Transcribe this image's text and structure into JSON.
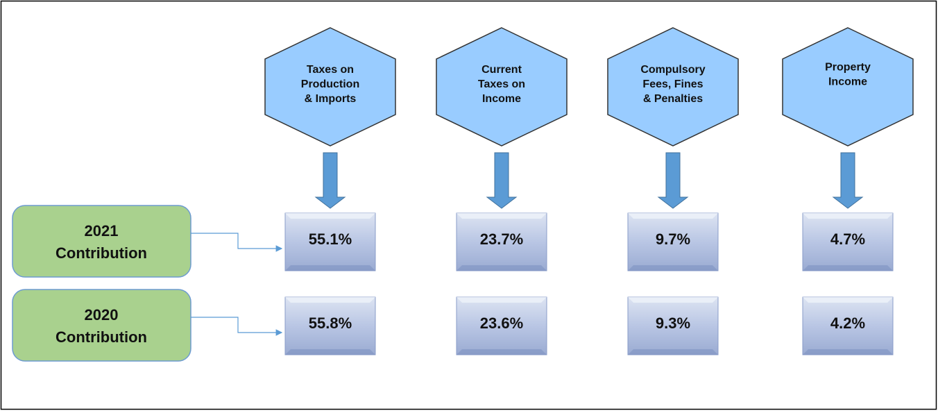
{
  "categories": [
    {
      "lines": [
        "Taxes on",
        "Production",
        "& Imports"
      ]
    },
    {
      "lines": [
        "Current",
        "Taxes on",
        "Income"
      ]
    },
    {
      "lines": [
        "Compulsory",
        "Fees, Fines",
        "& Penalties"
      ]
    },
    {
      "lines": [
        "Property",
        "Income"
      ]
    }
  ],
  "rows": [
    {
      "lines": [
        "2021",
        "Contribution"
      ],
      "values": [
        "55.1%",
        "23.7%",
        "9.7%",
        "4.7%"
      ]
    },
    {
      "lines": [
        "2020",
        "Contribution"
      ],
      "values": [
        "55.8%",
        "23.6%",
        "9.3%",
        "4.2%"
      ]
    }
  ]
}
